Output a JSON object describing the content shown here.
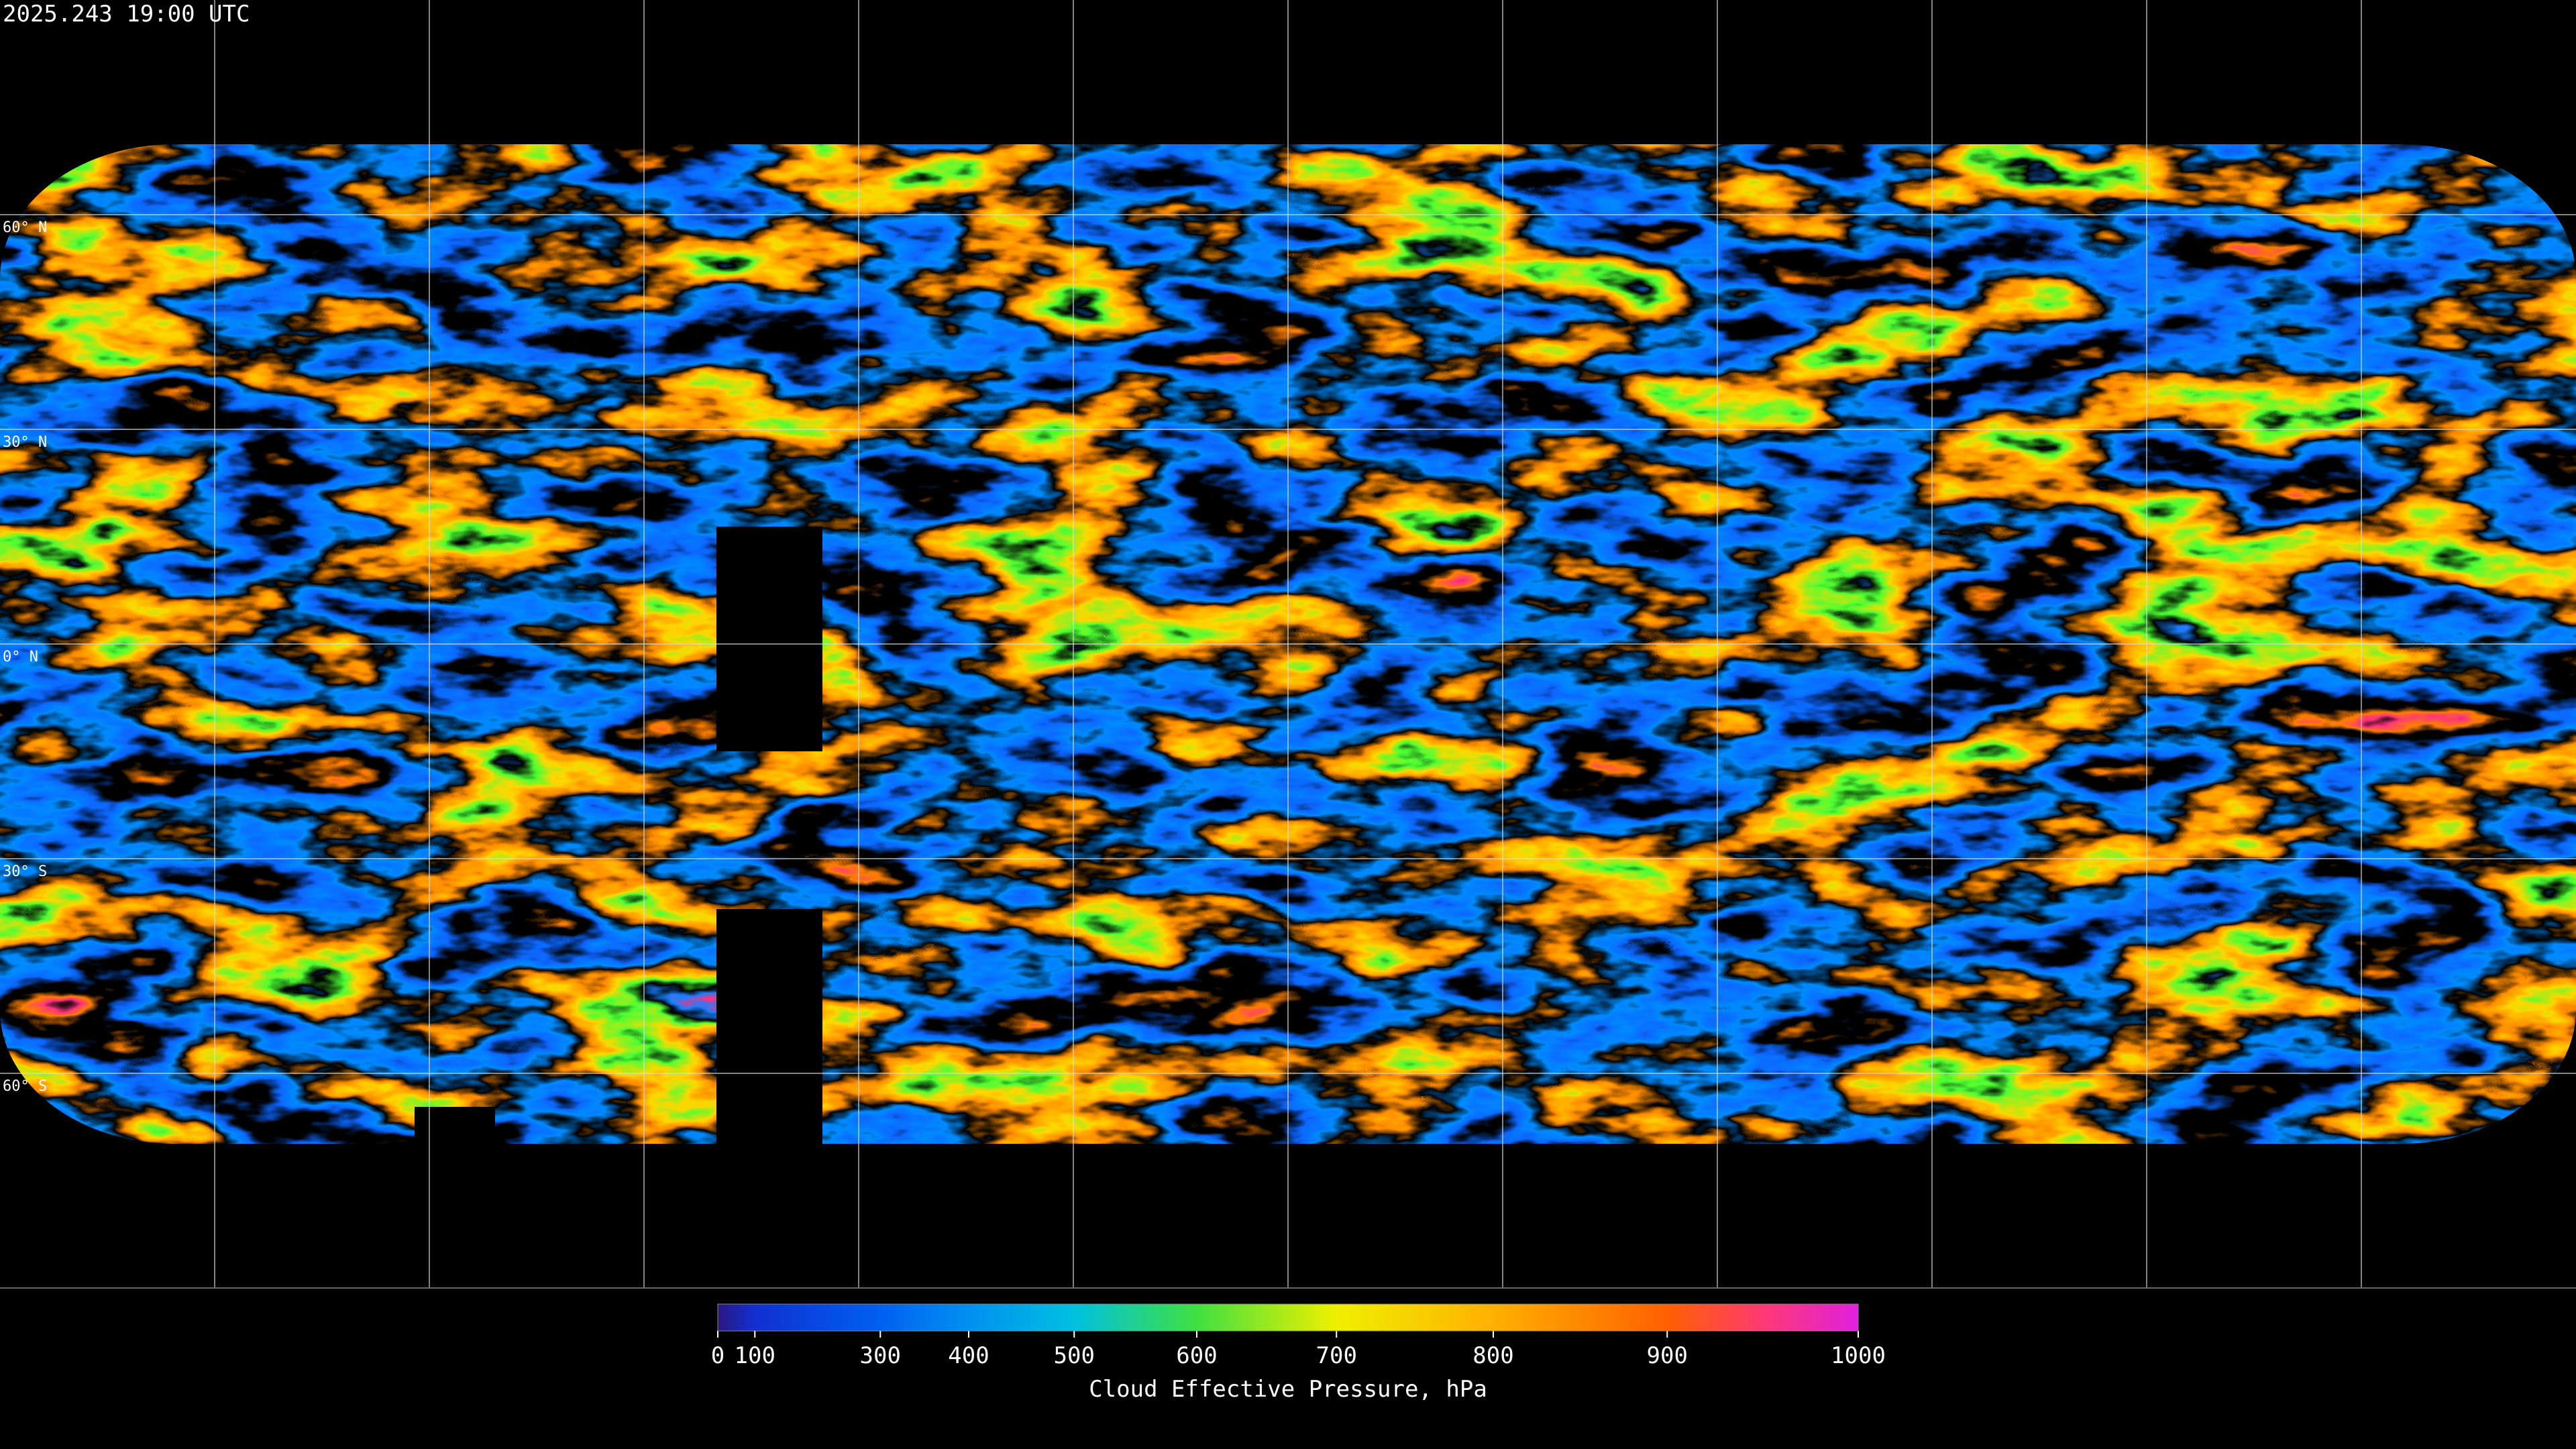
{
  "header": {
    "timestamp": "2025.243 19:00 UTC"
  },
  "map": {
    "latitude_labels": [
      "60° N",
      "30° N",
      "0° N",
      "30° S",
      "60° S"
    ]
  },
  "colorbar": {
    "label": "Cloud Effective Pressure, hPa",
    "range": [
      0,
      1000
    ],
    "ticks": [
      0,
      100,
      300,
      400,
      500,
      600,
      700,
      800,
      900,
      1000
    ]
  }
}
